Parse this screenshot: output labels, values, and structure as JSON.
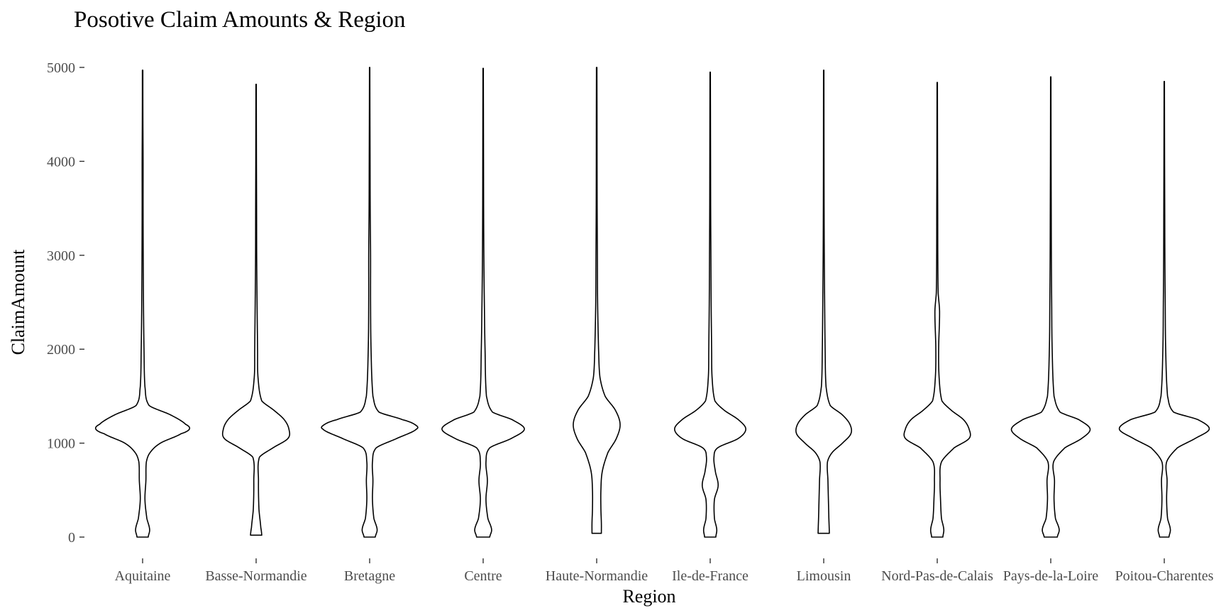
{
  "chart_data": {
    "type": "violin",
    "title": "Posotive Claim Amounts & Region",
    "xlabel": "Region",
    "ylabel": "ClaimAmount",
    "ylim": [
      0,
      5000
    ],
    "yticks": [
      0,
      1000,
      2000,
      3000,
      4000,
      5000
    ],
    "grid": false,
    "categories": [
      "Aquitaine",
      "Basse-Normandie",
      "Bretagne",
      "Centre",
      "Haute-Normandie",
      "Ile-de-France",
      "Limousin",
      "Nord-Pas-de-Calais",
      "Pays-de-la-Loire",
      "Poitou-Charentes"
    ],
    "series": [
      {
        "region": "Aquitaine",
        "min": 0,
        "max": 4970,
        "profile": [
          [
            0,
            0.12
          ],
          [
            80,
            0.15
          ],
          [
            200,
            0.09
          ],
          [
            400,
            0.05
          ],
          [
            600,
            0.07
          ],
          [
            800,
            0.08
          ],
          [
            900,
            0.16
          ],
          [
            1000,
            0.38
          ],
          [
            1100,
            0.82
          ],
          [
            1150,
            1.0
          ],
          [
            1200,
            0.92
          ],
          [
            1300,
            0.6
          ],
          [
            1400,
            0.14
          ],
          [
            1600,
            0.05
          ],
          [
            2000,
            0.03
          ],
          [
            2400,
            0.02
          ],
          [
            3000,
            0.013
          ],
          [
            3500,
            0.01
          ],
          [
            4000,
            0.01
          ],
          [
            4500,
            0.006
          ],
          [
            4970,
            0.005
          ]
        ]
      },
      {
        "region": "Basse-Normandie",
        "min": 20,
        "max": 4820,
        "profile": [
          [
            20,
            0.12
          ],
          [
            100,
            0.1
          ],
          [
            300,
            0.06
          ],
          [
            600,
            0.05
          ],
          [
            850,
            0.07
          ],
          [
            950,
            0.36
          ],
          [
            1050,
            0.68
          ],
          [
            1150,
            0.7
          ],
          [
            1250,
            0.6
          ],
          [
            1350,
            0.38
          ],
          [
            1450,
            0.12
          ],
          [
            1700,
            0.04
          ],
          [
            2000,
            0.03
          ],
          [
            2500,
            0.02
          ],
          [
            3000,
            0.012
          ],
          [
            3500,
            0.01
          ],
          [
            4000,
            0.007
          ],
          [
            4500,
            0.005
          ],
          [
            4820,
            0.004
          ]
        ]
      },
      {
        "region": "Bretagne",
        "min": 0,
        "max": 5000,
        "profile": [
          [
            0,
            0.12
          ],
          [
            80,
            0.16
          ],
          [
            200,
            0.09
          ],
          [
            400,
            0.06
          ],
          [
            600,
            0.07
          ],
          [
            800,
            0.06
          ],
          [
            950,
            0.14
          ],
          [
            1050,
            0.58
          ],
          [
            1150,
            1.0
          ],
          [
            1200,
            0.96
          ],
          [
            1250,
            0.7
          ],
          [
            1330,
            0.2
          ],
          [
            1500,
            0.07
          ],
          [
            2000,
            0.03
          ],
          [
            2500,
            0.02
          ],
          [
            3000,
            0.02
          ],
          [
            3500,
            0.012
          ],
          [
            4000,
            0.009
          ],
          [
            4500,
            0.006
          ],
          [
            5000,
            0.004
          ]
        ]
      },
      {
        "region": "Centre",
        "min": 0,
        "max": 4990,
        "profile": [
          [
            0,
            0.14
          ],
          [
            80,
            0.18
          ],
          [
            200,
            0.1
          ],
          [
            400,
            0.06
          ],
          [
            600,
            0.09
          ],
          [
            800,
            0.06
          ],
          [
            950,
            0.14
          ],
          [
            1050,
            0.6
          ],
          [
            1150,
            0.88
          ],
          [
            1250,
            0.62
          ],
          [
            1330,
            0.2
          ],
          [
            1500,
            0.07
          ],
          [
            2000,
            0.04
          ],
          [
            2500,
            0.025
          ],
          [
            3000,
            0.015
          ],
          [
            3500,
            0.01
          ],
          [
            4000,
            0.008
          ],
          [
            4500,
            0.006
          ],
          [
            4990,
            0.004
          ]
        ]
      },
      {
        "region": "Haute-Normandie",
        "min": 40,
        "max": 5000,
        "profile": [
          [
            40,
            0.1
          ],
          [
            150,
            0.1
          ],
          [
            300,
            0.09
          ],
          [
            500,
            0.09
          ],
          [
            700,
            0.12
          ],
          [
            900,
            0.24
          ],
          [
            1050,
            0.42
          ],
          [
            1200,
            0.5
          ],
          [
            1350,
            0.4
          ],
          [
            1500,
            0.18
          ],
          [
            1700,
            0.07
          ],
          [
            2000,
            0.04
          ],
          [
            2500,
            0.02
          ],
          [
            3000,
            0.015
          ],
          [
            3500,
            0.01
          ],
          [
            4000,
            0.008
          ],
          [
            4500,
            0.007
          ],
          [
            5000,
            0.005
          ]
        ]
      },
      {
        "region": "Ile-de-France",
        "min": 0,
        "max": 4950,
        "profile": [
          [
            0,
            0.12
          ],
          [
            80,
            0.14
          ],
          [
            200,
            0.09
          ],
          [
            400,
            0.09
          ],
          [
            550,
            0.17
          ],
          [
            700,
            0.11
          ],
          [
            850,
            0.08
          ],
          [
            950,
            0.16
          ],
          [
            1050,
            0.6
          ],
          [
            1150,
            0.76
          ],
          [
            1250,
            0.6
          ],
          [
            1350,
            0.3
          ],
          [
            1450,
            0.1
          ],
          [
            1700,
            0.04
          ],
          [
            2000,
            0.03
          ],
          [
            2500,
            0.02
          ],
          [
            3000,
            0.015
          ],
          [
            3500,
            0.01
          ],
          [
            4000,
            0.008
          ],
          [
            4500,
            0.006
          ],
          [
            4950,
            0.004
          ]
        ]
      },
      {
        "region": "Limousin",
        "min": 40,
        "max": 4970,
        "profile": [
          [
            40,
            0.12
          ],
          [
            200,
            0.11
          ],
          [
            400,
            0.1
          ],
          [
            600,
            0.09
          ],
          [
            800,
            0.08
          ],
          [
            900,
            0.18
          ],
          [
            1000,
            0.4
          ],
          [
            1100,
            0.58
          ],
          [
            1200,
            0.56
          ],
          [
            1300,
            0.4
          ],
          [
            1400,
            0.14
          ],
          [
            1600,
            0.05
          ],
          [
            2000,
            0.03
          ],
          [
            2500,
            0.02
          ],
          [
            3000,
            0.012
          ],
          [
            3500,
            0.008
          ],
          [
            4000,
            0.006
          ],
          [
            4500,
            0.005
          ],
          [
            4970,
            0.004
          ]
        ]
      },
      {
        "region": "Nord-Pas-de-Calais",
        "min": 0,
        "max": 4840,
        "profile": [
          [
            0,
            0.12
          ],
          [
            80,
            0.14
          ],
          [
            200,
            0.09
          ],
          [
            400,
            0.07
          ],
          [
            600,
            0.06
          ],
          [
            800,
            0.09
          ],
          [
            950,
            0.36
          ],
          [
            1050,
            0.68
          ],
          [
            1150,
            0.68
          ],
          [
            1250,
            0.56
          ],
          [
            1350,
            0.3
          ],
          [
            1450,
            0.1
          ],
          [
            1700,
            0.04
          ],
          [
            2000,
            0.03
          ],
          [
            2400,
            0.05
          ],
          [
            2600,
            0.02
          ],
          [
            3000,
            0.012
          ],
          [
            3500,
            0.01
          ],
          [
            4000,
            0.007
          ],
          [
            4500,
            0.005
          ],
          [
            4840,
            0.004
          ]
        ]
      },
      {
        "region": "Pays-de-la-Loire",
        "min": 0,
        "max": 4900,
        "profile": [
          [
            0,
            0.14
          ],
          [
            80,
            0.18
          ],
          [
            200,
            0.1
          ],
          [
            400,
            0.07
          ],
          [
            600,
            0.08
          ],
          [
            800,
            0.06
          ],
          [
            950,
            0.3
          ],
          [
            1050,
            0.66
          ],
          [
            1150,
            0.84
          ],
          [
            1250,
            0.6
          ],
          [
            1330,
            0.2
          ],
          [
            1500,
            0.07
          ],
          [
            2000,
            0.03
          ],
          [
            2500,
            0.02
          ],
          [
            3000,
            0.013
          ],
          [
            3500,
            0.01
          ],
          [
            4000,
            0.007
          ],
          [
            4500,
            0.005
          ],
          [
            4900,
            0.004
          ]
        ]
      },
      {
        "region": "Poitou-Charentes",
        "min": 0,
        "max": 4850,
        "profile": [
          [
            0,
            0.1
          ],
          [
            80,
            0.13
          ],
          [
            200,
            0.07
          ],
          [
            400,
            0.05
          ],
          [
            600,
            0.06
          ],
          [
            800,
            0.05
          ],
          [
            950,
            0.28
          ],
          [
            1050,
            0.66
          ],
          [
            1150,
            0.96
          ],
          [
            1250,
            0.72
          ],
          [
            1330,
            0.2
          ],
          [
            1500,
            0.07
          ],
          [
            2000,
            0.03
          ],
          [
            2500,
            0.02
          ],
          [
            3000,
            0.013
          ],
          [
            3500,
            0.01
          ],
          [
            4000,
            0.007
          ],
          [
            4500,
            0.005
          ],
          [
            4850,
            0.004
          ]
        ]
      }
    ]
  }
}
